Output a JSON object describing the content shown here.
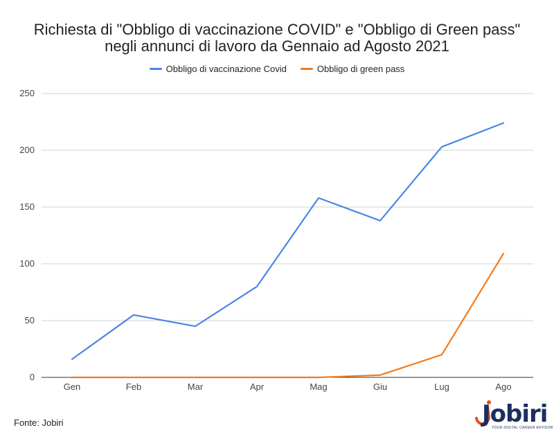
{
  "chart_data": {
    "type": "line",
    "title_line1": "Richiesta di \"Obbligo di vaccinazione COVID\" e \"Obbligo di Green pass\"",
    "title_line2": "negli annunci di lavoro da Gennaio ad Agosto 2021",
    "categories": [
      "Gen",
      "Feb",
      "Mar",
      "Apr",
      "Mag",
      "Giu",
      "Lug",
      "Ago"
    ],
    "series": [
      {
        "name": "Obbligo di vaccinazione Covid",
        "color": "#4a86e8",
        "values": [
          16,
          55,
          45,
          80,
          158,
          138,
          203,
          224
        ]
      },
      {
        "name": "Obbligo di green pass",
        "color": "#f07b1f",
        "values": [
          0,
          0,
          0,
          0,
          0,
          2,
          20,
          109
        ]
      }
    ],
    "ylim": [
      0,
      250
    ],
    "yticks": [
      0,
      50,
      100,
      150,
      200,
      250
    ],
    "grid": true,
    "legend_position": "top"
  },
  "footer": {
    "source": "Fonte: Jobiri"
  },
  "logo": {
    "word": "Jobiri",
    "tagline": "YOUR DIGITAL CAREER ADVISOR"
  }
}
